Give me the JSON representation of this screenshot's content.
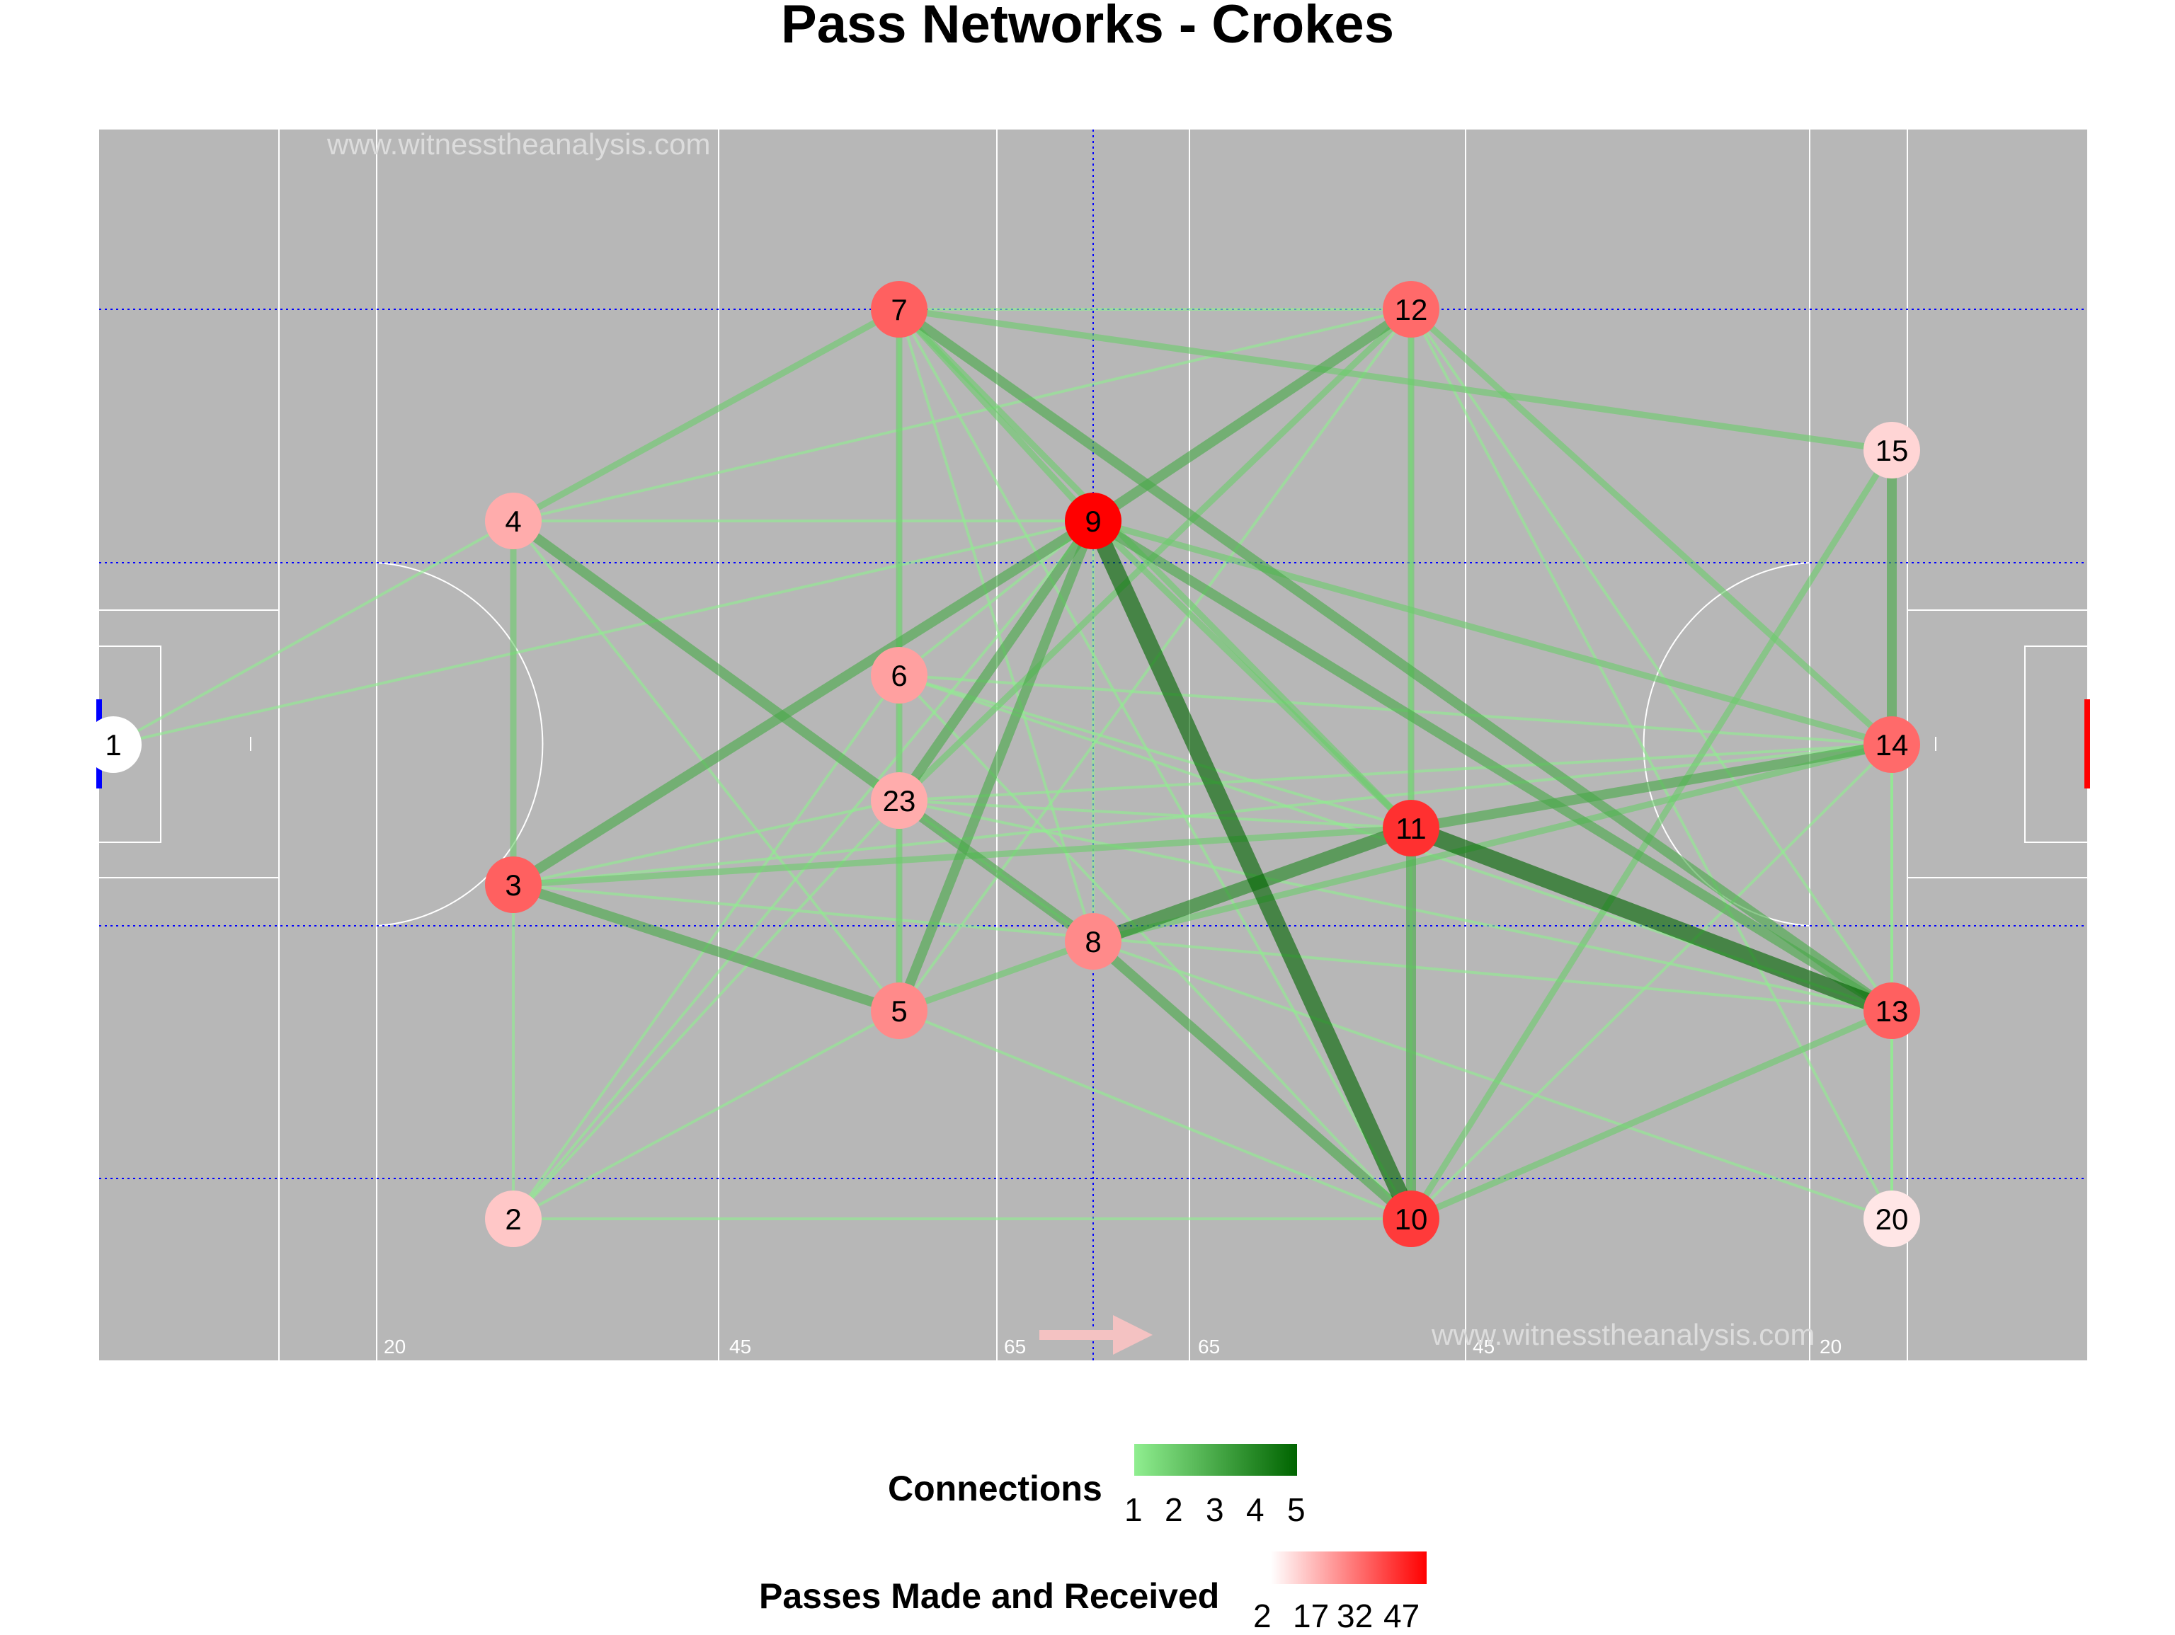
{
  "title": "Pass Networks - Crokes",
  "watermarks": [
    "www.witnesstheanalysis.com",
    "www.witnesstheanalysis.com"
  ],
  "distance_labels": [
    "20",
    "45",
    "65",
    "65",
    "45",
    "20"
  ],
  "colors": {
    "pitch": "#b7b7b7",
    "pitch_lines": "#ffffff",
    "dotted_lines": "#0000ff",
    "edge_low": "#90ee90",
    "edge_high": "#006400",
    "node_low": "#ffffff",
    "node_high": "#ff0000",
    "direction_arrow": "#f4c2c2",
    "goal_left": "#0000ff",
    "goal_right": "#ff0000"
  },
  "chart_data": {
    "type": "network",
    "nodes": [
      {
        "id": "1",
        "passes": 2
      },
      {
        "id": "2",
        "passes": 8
      },
      {
        "id": "3",
        "passes": 26
      },
      {
        "id": "4",
        "passes": 12
      },
      {
        "id": "5",
        "passes": 18
      },
      {
        "id": "6",
        "passes": 14
      },
      {
        "id": "7",
        "passes": 26
      },
      {
        "id": "8",
        "passes": 18
      },
      {
        "id": "9",
        "passes": 47
      },
      {
        "id": "10",
        "passes": 34
      },
      {
        "id": "11",
        "passes": 36
      },
      {
        "id": "12",
        "passes": 24
      },
      {
        "id": "13",
        "passes": 26
      },
      {
        "id": "14",
        "passes": 24
      },
      {
        "id": "15",
        "passes": 6
      },
      {
        "id": "20",
        "passes": 4
      },
      {
        "id": "23",
        "passes": 12
      }
    ],
    "edges": [
      [
        "1",
        "4",
        1
      ],
      [
        "1",
        "9",
        1
      ],
      [
        "2",
        "3",
        1
      ],
      [
        "2",
        "6",
        1
      ],
      [
        "2",
        "23",
        1
      ],
      [
        "2",
        "10",
        1
      ],
      [
        "2",
        "9",
        1
      ],
      [
        "2",
        "5",
        1
      ],
      [
        "3",
        "4",
        2
      ],
      [
        "3",
        "5",
        3
      ],
      [
        "3",
        "9",
        3
      ],
      [
        "3",
        "11",
        2
      ],
      [
        "3",
        "23",
        1
      ],
      [
        "3",
        "14",
        1
      ],
      [
        "4",
        "7",
        2
      ],
      [
        "4",
        "8",
        3
      ],
      [
        "4",
        "9",
        1
      ],
      [
        "4",
        "12",
        1
      ],
      [
        "4",
        "5",
        1
      ],
      [
        "5",
        "9",
        3
      ],
      [
        "5",
        "8",
        2
      ],
      [
        "5",
        "23",
        2
      ],
      [
        "5",
        "12",
        1
      ],
      [
        "5",
        "10",
        1
      ],
      [
        "5",
        "7",
        1
      ],
      [
        "6",
        "9",
        1
      ],
      [
        "6",
        "14",
        1
      ],
      [
        "6",
        "13",
        1
      ],
      [
        "6",
        "11",
        1
      ],
      [
        "6",
        "23",
        2
      ],
      [
        "6",
        "10",
        1
      ],
      [
        "7",
        "9",
        2
      ],
      [
        "7",
        "11",
        2
      ],
      [
        "7",
        "12",
        1
      ],
      [
        "7",
        "15",
        2
      ],
      [
        "7",
        "13",
        3
      ],
      [
        "7",
        "8",
        1
      ],
      [
        "7",
        "6",
        2
      ],
      [
        "7",
        "10",
        1
      ],
      [
        "8",
        "9",
        1
      ],
      [
        "8",
        "11",
        4
      ],
      [
        "8",
        "14",
        2
      ],
      [
        "8",
        "10",
        3
      ],
      [
        "8",
        "20",
        1
      ],
      [
        "8",
        "23",
        1
      ],
      [
        "9",
        "10",
        5
      ],
      [
        "9",
        "12",
        3
      ],
      [
        "9",
        "14",
        2
      ],
      [
        "9",
        "13",
        3
      ],
      [
        "9",
        "11",
        2
      ],
      [
        "9",
        "23",
        3
      ],
      [
        "10",
        "11",
        3
      ],
      [
        "10",
        "13",
        2
      ],
      [
        "10",
        "15",
        2
      ],
      [
        "10",
        "12",
        1
      ],
      [
        "10",
        "14",
        1
      ],
      [
        "11",
        "13",
        5
      ],
      [
        "11",
        "14",
        3
      ],
      [
        "11",
        "12",
        2
      ],
      [
        "11",
        "23",
        1
      ],
      [
        "12",
        "14",
        2
      ],
      [
        "12",
        "13",
        1
      ],
      [
        "12",
        "20",
        1
      ],
      [
        "12",
        "23",
        2
      ],
      [
        "13",
        "14",
        1
      ],
      [
        "13",
        "20",
        1
      ],
      [
        "13",
        "23",
        1
      ],
      [
        "13",
        "3",
        1
      ],
      [
        "14",
        "15",
        3
      ],
      [
        "14",
        "20",
        1
      ],
      [
        "14",
        "23",
        1
      ]
    ],
    "legend": [
      {
        "title": "Connections",
        "ticks": [
          "1",
          "2",
          "3",
          "4",
          "5"
        ]
      },
      {
        "title": "Passes Made and Received",
        "ticks": [
          "2",
          "17",
          "32",
          "47"
        ]
      }
    ]
  }
}
